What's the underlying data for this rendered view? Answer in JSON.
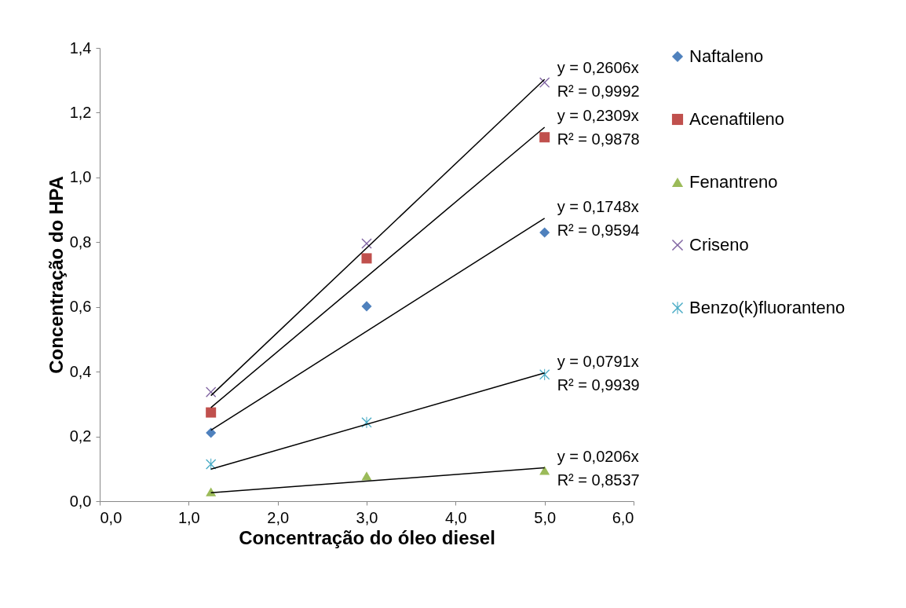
{
  "chart_data": {
    "type": "scatter",
    "xlabel": "Concentração do óleo diesel",
    "ylabel": "Concentração do HPA",
    "xlim": [
      0,
      6
    ],
    "ylim": [
      0,
      1.4
    ],
    "xticks": [
      {
        "value": 0,
        "label": "0,0"
      },
      {
        "value": 1,
        "label": "1,0"
      },
      {
        "value": 2,
        "label": "2,0"
      },
      {
        "value": 3,
        "label": "3,0"
      },
      {
        "value": 4,
        "label": "4,0"
      },
      {
        "value": 5,
        "label": "5,0"
      },
      {
        "value": 6,
        "label": "6,0"
      }
    ],
    "yticks": [
      {
        "value": 0,
        "label": "0,0"
      },
      {
        "value": 0.2,
        "label": "0,2"
      },
      {
        "value": 0.4,
        "label": "0,4"
      },
      {
        "value": 0.6,
        "label": "0,6"
      },
      {
        "value": 0.8,
        "label": "0,8"
      },
      {
        "value": 1.0,
        "label": "1,0"
      },
      {
        "value": 1.2,
        "label": "1,2"
      },
      {
        "value": 1.4,
        "label": "1,4"
      }
    ],
    "grid": false,
    "legend": "right",
    "series": [
      {
        "name": "Naftaleno",
        "color": "#4f81bd",
        "marker": "diamond",
        "x": [
          1.25,
          3,
          5
        ],
        "values": [
          0.211,
          0.602,
          0.83
        ]
      },
      {
        "name": "Acenaftileno",
        "color": "#c0504d",
        "marker": "square",
        "x": [
          1.25,
          3,
          5
        ],
        "values": [
          0.274,
          0.75,
          1.124
        ]
      },
      {
        "name": "Fenantreno",
        "color": "#9bbb59",
        "marker": "triangle",
        "x": [
          1.25,
          3,
          5
        ],
        "values": [
          0.029,
          0.078,
          0.095
        ]
      },
      {
        "name": "Criseno",
        "color": "#8064a2",
        "marker": "cross",
        "x": [
          1.25,
          3,
          5
        ],
        "values": [
          0.337,
          0.796,
          1.293
        ]
      },
      {
        "name": "Benzo(k)fluoranteno",
        "color": "#4bacc6",
        "marker": "star",
        "x": [
          1.25,
          3,
          5
        ],
        "values": [
          0.114,
          0.243,
          0.391
        ]
      },
      {
        "type": "line",
        "color": "#000000",
        "x": [
          1.25,
          5
        ],
        "values": [
          0.326,
          1.303
        ]
      },
      {
        "type": "line",
        "color": "#000000",
        "x": [
          1.25,
          5
        ],
        "values": [
          0.289,
          1.155
        ]
      },
      {
        "type": "line",
        "color": "#000000",
        "x": [
          1.25,
          5
        ],
        "values": [
          0.219,
          0.874
        ]
      },
      {
        "type": "line",
        "color": "#000000",
        "x": [
          1.25,
          5
        ],
        "values": [
          0.099,
          0.396
        ]
      },
      {
        "type": "line",
        "color": "#000000",
        "x": [
          1.25,
          5
        ],
        "values": [
          0.026,
          0.103
        ]
      }
    ],
    "annotations": [
      "y = 0,2606x",
      "R² = 0,9992",
      "y = 0,2309x",
      "R² = 0,9878",
      "y = 0,1748x",
      "R² = 0,9594",
      "y = 0,0791x",
      "R² = 0,9939",
      "y = 0,0206x",
      "R² = 0,8537"
    ]
  }
}
